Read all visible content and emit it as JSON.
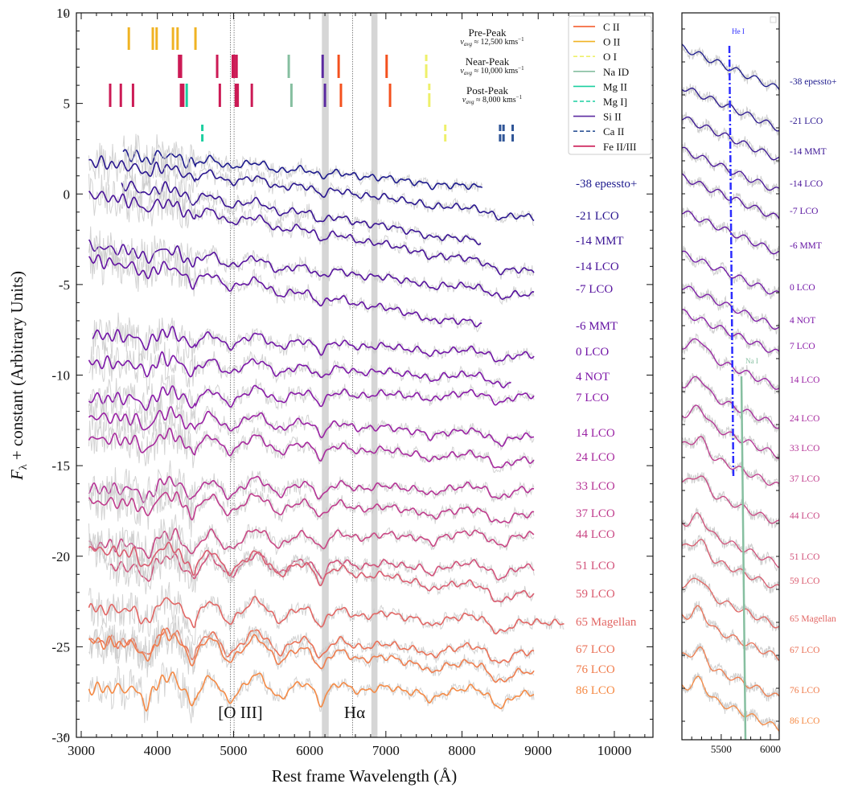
{
  "chart_data": [
    {
      "type": "line",
      "panel": "main",
      "xlabel": "Rest frame Wavelength (Å)",
      "ylabel": "F_λ + constant (Arbitrary Units)",
      "ylabel_main": "F",
      "ylabel_sub": "λ",
      "ylabel_rest": " + constant (Arbitrary Units)",
      "xlim": [
        2750,
        10500
      ],
      "ylim": [
        -30,
        10
      ],
      "xticks": [
        3000,
        4000,
        5000,
        6000,
        7000,
        8000,
        9000,
        10000
      ],
      "yticks": [
        -30,
        -25,
        -20,
        -15,
        -10,
        -5,
        0,
        5,
        10
      ],
      "grid": false,
      "annotations": [
        {
          "text": "[O III]",
          "x": 5000,
          "y": -28.3
        },
        {
          "text": "Hα",
          "x": 6560,
          "y": -28.3
        }
      ],
      "vertical_lines": [
        4959,
        5007,
        6563
      ],
      "shaded_bands": [
        [
          6160,
          6250
        ],
        [
          6810,
          6890
        ]
      ],
      "epoch_groups": [
        {
          "title": "Pre-Peak",
          "velocity": "v_avg ≈ 12,500 kms⁻¹",
          "v_main": "v",
          "v_sub": "avg",
          "v_rest": " ≈ 12,500 kms",
          "v_sup": "−1"
        },
        {
          "title": "Near-Peak",
          "velocity": "v_avg ≈ 10,000 kms⁻¹",
          "v_main": "v",
          "v_sub": "avg",
          "v_rest": " ≈ 10,000 kms",
          "v_sup": "−1"
        },
        {
          "title": "Post-Peak",
          "velocity": "v_avg ≈ 8,000 kms⁻¹",
          "v_main": "v",
          "v_sub": "avg",
          "v_rest": " ≈ 8,000 kms",
          "v_sup": "−1"
        }
      ],
      "legend": {
        "placement": "top-right",
        "items": [
          {
            "label": "C II",
            "color": "#f4511e",
            "dashed": false
          },
          {
            "label": "O II",
            "color": "#f0b323",
            "dashed": false
          },
          {
            "label": "O I",
            "color": "#eef06a",
            "dashed": true
          },
          {
            "label": "Na ID",
            "color": "#86bfa0",
            "dashed": false
          },
          {
            "label": "Mg II",
            "color": "#1ccfa0",
            "dashed": false
          },
          {
            "label": "Mg I]",
            "color": "#1ccfa0",
            "dashed": true
          },
          {
            "label": "Si II",
            "color": "#5b2aa0",
            "dashed": false
          },
          {
            "label": "Ca II",
            "color": "#2f5597",
            "dashed": true
          },
          {
            "label": "Fe II/III",
            "color": "#cc1a55",
            "dashed": false
          }
        ]
      },
      "line_marks": {
        "pre_peak": [
          {
            "ion": "O II",
            "wavelengths": [
              3625,
              3940,
              3990,
              4205,
              4265,
              4500
            ]
          }
        ],
        "near_peak": [
          {
            "ion": "Fe II/III",
            "wavelengths": [
              4285,
              4310,
              4785,
              4990,
              5010,
              5040
            ]
          },
          {
            "ion": "Na ID",
            "wavelengths": [
              5725
            ]
          },
          {
            "ion": "Si II",
            "wavelengths": [
              6170
            ]
          },
          {
            "ion": "C II",
            "wavelengths": [
              6380,
              7010
            ]
          },
          {
            "ion": "O I",
            "wavelengths": [
              7530
            ]
          }
        ],
        "post_peak": [
          {
            "ion": "Fe II/III",
            "wavelengths": [
              3380,
              3520,
              3680,
              4310,
              4340,
              4820,
              5030,
              5055,
              5240
            ]
          },
          {
            "ion": "Mg II",
            "wavelengths": [
              4385
            ]
          },
          {
            "ion": "Na ID",
            "wavelengths": [
              5760
            ]
          },
          {
            "ion": "Si II",
            "wavelengths": [
              6200
            ]
          },
          {
            "ion": "C II",
            "wavelengths": [
              6410,
              7055
            ]
          },
          {
            "ion": "O I",
            "wavelengths": [
              7570
            ]
          }
        ],
        "other": [
          {
            "ion": "Mg I]",
            "wavelengths": [
              4590
            ]
          },
          {
            "ion": "O I",
            "wavelengths": [
              7780
            ]
          },
          {
            "ion": "Ca II",
            "wavelengths": [
              8500,
              8545,
              8665
            ]
          }
        ]
      },
      "series": [
        {
          "name": "-38 epessto+",
          "color": "#1d1a8d",
          "range": [
            3550,
            8270
          ],
          "flux_start": 2.2,
          "flux_end": 0.3
        },
        {
          "name": "-21 LCO",
          "color": "#2a168f",
          "range": [
            3100,
            8950
          ],
          "flux_start": 1.8,
          "flux_end": -1.3
        },
        {
          "name": "-14 MMT",
          "color": "#3a1494",
          "range": [
            3530,
            8250
          ],
          "flux_start": 0.5,
          "flux_end": -2.7
        },
        {
          "name": "-14 LCO",
          "color": "#491399",
          "range": [
            3100,
            8950
          ],
          "flux_start": 0.0,
          "flux_end": -4.3
        },
        {
          "name": "-7 LCO",
          "color": "#56129e",
          "range": [
            3100,
            8950
          ],
          "flux_start": -2.9,
          "flux_end": -5.6
        },
        {
          "name": "-6 MMT",
          "color": "#6312a2",
          "range": [
            3100,
            8270
          ],
          "flux_start": -3.6,
          "flux_end": -7.3
        },
        {
          "name": "0 LCO",
          "color": "#7014a6",
          "range": [
            3150,
            8950
          ],
          "flux_start": -7.8,
          "flux_end": -8.9
        },
        {
          "name": "4 NOT",
          "color": "#7d17a8",
          "range": [
            3100,
            8650
          ],
          "flux_start": -9.3,
          "flux_end": -10.2
        },
        {
          "name": "7 LCO",
          "color": "#8a1ba8",
          "range": [
            3100,
            8950
          ],
          "flux_start": -11.3,
          "flux_end": -11.1
        },
        {
          "name": "14 LCO",
          "color": "#9a22a4",
          "range": [
            3100,
            8950
          ],
          "flux_start": -12.3,
          "flux_end": -13.4
        },
        {
          "name": "24 LCO",
          "color": "#a82a9e",
          "range": [
            3100,
            8950
          ],
          "flux_start": -13.5,
          "flux_end": -14.7
        },
        {
          "name": "33 LCO",
          "color": "#b53396",
          "range": [
            3100,
            8950
          ],
          "flux_start": -16.3,
          "flux_end": -16.3
        },
        {
          "name": "37 LCO",
          "color": "#c03c8d",
          "range": [
            3100,
            8950
          ],
          "flux_start": -17.0,
          "flux_end": -17.7
        },
        {
          "name": "44 LCO",
          "color": "#c94784",
          "range": [
            3100,
            8950
          ],
          "flux_start": -19.4,
          "flux_end": -18.8
        },
        {
          "name": "51 LCO",
          "color": "#d2517a",
          "range": [
            3380,
            8950
          ],
          "flux_start": -20.6,
          "flux_end": -20.6
        },
        {
          "name": "59 LCO",
          "color": "#da5b6f",
          "range": [
            3100,
            8950
          ],
          "flux_start": -19.6,
          "flux_end": -22.1
        },
        {
          "name": "65 Magellan",
          "color": "#e26664",
          "range": [
            3100,
            9350
          ],
          "flux_start": -22.9,
          "flux_end": -23.7
        },
        {
          "name": "67 LCO",
          "color": "#ea7157",
          "range": [
            3100,
            8950
          ],
          "flux_start": -24.7,
          "flux_end": -25.3
        },
        {
          "name": "76 LCO",
          "color": "#f07d4d",
          "range": [
            3100,
            8950
          ],
          "flux_start": -24.7,
          "flux_end": -26.4
        },
        {
          "name": "86 LCO",
          "color": "#f58a45",
          "range": [
            3100,
            8950
          ],
          "flux_start": -27.3,
          "flux_end": -27.6
        }
      ]
    },
    {
      "type": "line",
      "panel": "zoom",
      "xlim": [
        5100,
        6090
      ],
      "xticks": [
        5500,
        6000
      ],
      "lines": [
        {
          "label": "He I",
          "color": "#2b2bff",
          "dashed": true,
          "wavelength": 5600
        },
        {
          "label": "Na I",
          "color": "#86bfa0",
          "dashed": false,
          "wavelength": 5740
        }
      ],
      "series_labels": [
        "-38 epessto+",
        "-21 LCO",
        "-14 MMT",
        "-14 LCO",
        "-7 LCO",
        "-6 MMT",
        "0 LCO",
        "4 NOT",
        "7 LCO",
        "14 LCO",
        "24 LCO",
        "33 LCO",
        "37 LCO",
        "44 LCO",
        "51 LCO",
        "59 LCO",
        "65 Magellan",
        "67 LCO",
        "76 LCO",
        "86 LCO"
      ]
    }
  ]
}
